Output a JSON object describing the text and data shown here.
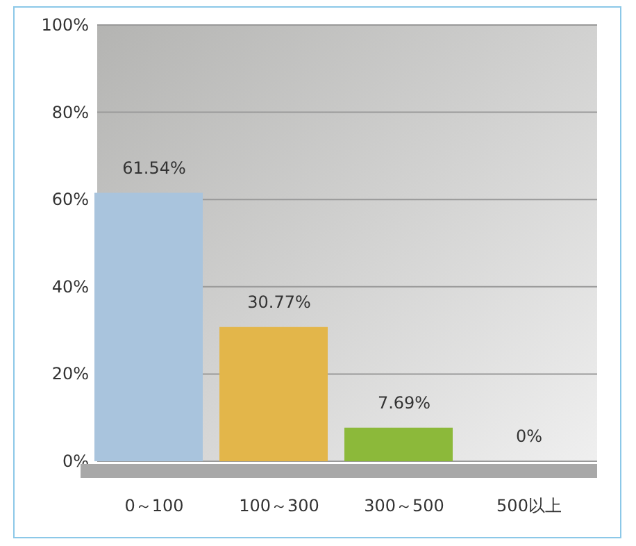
{
  "chart_data": {
    "type": "bar",
    "categories": [
      "0～100",
      "100～300",
      "300～500",
      "500以上"
    ],
    "values": [
      61.54,
      30.77,
      7.69,
      0
    ],
    "colors": [
      "#a9c4dd",
      "#e3b64a",
      "#8cb93a",
      "#f0a283"
    ],
    "value_labels": [
      "61.54%",
      "30.77%",
      "7.69%",
      "0%"
    ],
    "ylim": [
      0,
      100
    ],
    "yticks": [
      {
        "value": 0,
        "label": "0%"
      },
      {
        "value": 20,
        "label": "20%"
      },
      {
        "value": 40,
        "label": "40%"
      },
      {
        "value": 60,
        "label": "60%"
      },
      {
        "value": 80,
        "label": "80%"
      },
      {
        "value": 100,
        "label": "100%"
      }
    ],
    "grid": "y"
  }
}
